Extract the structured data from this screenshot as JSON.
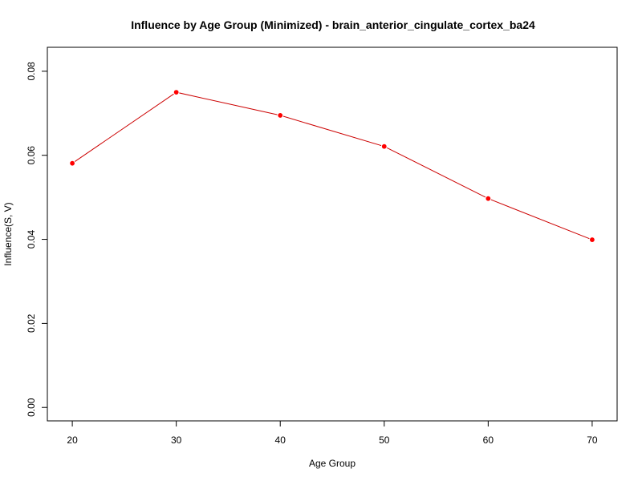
{
  "chart_data": {
    "type": "line",
    "title": "Influence by Age Group (Minimized) - brain_anterior_cingulate_cortex_ba24",
    "xlabel": "Age Group",
    "ylabel": "Influence(S, V)",
    "x": [
      20,
      30,
      40,
      50,
      60,
      70
    ],
    "series": [
      {
        "values": [
          0.0581,
          0.075,
          0.0695,
          0.0621,
          0.0497,
          0.0399
        ],
        "color": "#cc0000",
        "marker_color": "#ff0000"
      }
    ],
    "x_ticks": [
      20,
      30,
      40,
      50,
      60,
      70
    ],
    "x_tick_labels": [
      "20",
      "30",
      "40",
      "50",
      "60",
      "70"
    ],
    "y_ticks": [
      0.0,
      0.02,
      0.04,
      0.06,
      0.08
    ],
    "y_tick_labels": [
      "0.00",
      "0.02",
      "0.04",
      "0.06",
      "0.08"
    ],
    "xlim": [
      17.6,
      72.4
    ],
    "ylim": [
      -0.0032,
      0.0857
    ],
    "grid": false,
    "legend": "none"
  }
}
